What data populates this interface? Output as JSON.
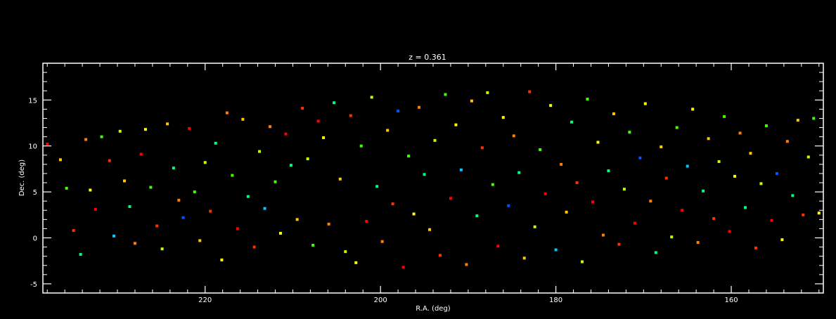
{
  "chart_data": {
    "type": "scatter",
    "title": "z = 0.361",
    "xlabel": "R.A. (deg)",
    "ylabel": "Dec. (deg)",
    "xlim": [
      238.5,
      149.5
    ],
    "ylim": [
      -6.0,
      19.0
    ],
    "x_ticks": [
      220,
      200,
      180,
      160
    ],
    "x_tick_labels": [
      "220",
      "200",
      "180",
      "160"
    ],
    "y_ticks": [
      -5,
      0,
      5,
      10,
      15
    ],
    "y_tick_labels": [
      "-5",
      "0",
      "5",
      "10",
      "15"
    ],
    "grid": false,
    "legend": "none",
    "background_color": "#000000",
    "axis_color": "#ffffff",
    "point_colors": [
      "#0055ff",
      "#00c8ff",
      "#00ff80",
      "#40ff00",
      "#c0ff00",
      "#ffff00",
      "#ffc800",
      "#ff8000",
      "#ff3000",
      "#ff0000"
    ],
    "points": [
      {
        "x": 238.0,
        "y": 10.2,
        "c": 9
      },
      {
        "x": 236.5,
        "y": 8.5,
        "c": 6
      },
      {
        "x": 235.8,
        "y": 5.4,
        "c": 3
      },
      {
        "x": 235.0,
        "y": 0.8,
        "c": 8
      },
      {
        "x": 234.2,
        "y": -1.8,
        "c": 2
      },
      {
        "x": 233.6,
        "y": 10.7,
        "c": 7
      },
      {
        "x": 233.1,
        "y": 5.2,
        "c": 5
      },
      {
        "x": 232.5,
        "y": 3.1,
        "c": 9
      },
      {
        "x": 231.8,
        "y": 11.0,
        "c": 3
      },
      {
        "x": 230.9,
        "y": 8.4,
        "c": 8
      },
      {
        "x": 230.4,
        "y": 0.2,
        "c": 1
      },
      {
        "x": 229.7,
        "y": 11.6,
        "c": 4
      },
      {
        "x": 229.2,
        "y": 6.2,
        "c": 6
      },
      {
        "x": 228.6,
        "y": 3.4,
        "c": 2
      },
      {
        "x": 228.0,
        "y": -0.6,
        "c": 7
      },
      {
        "x": 227.3,
        "y": 9.1,
        "c": 9
      },
      {
        "x": 226.8,
        "y": 11.8,
        "c": 5
      },
      {
        "x": 226.2,
        "y": 5.5,
        "c": 3
      },
      {
        "x": 225.5,
        "y": 1.3,
        "c": 8
      },
      {
        "x": 224.9,
        "y": -1.2,
        "c": 4
      },
      {
        "x": 224.3,
        "y": 12.4,
        "c": 6
      },
      {
        "x": 223.6,
        "y": 7.6,
        "c": 2
      },
      {
        "x": 223.0,
        "y": 4.1,
        "c": 7
      },
      {
        "x": 222.5,
        "y": 2.2,
        "c": 0
      },
      {
        "x": 221.8,
        "y": 11.9,
        "c": 9
      },
      {
        "x": 221.2,
        "y": 5.0,
        "c": 3
      },
      {
        "x": 220.6,
        "y": -0.3,
        "c": 6
      },
      {
        "x": 220.0,
        "y": 8.2,
        "c": 4
      },
      {
        "x": 219.4,
        "y": 2.9,
        "c": 8
      },
      {
        "x": 218.8,
        "y": 10.3,
        "c": 2
      },
      {
        "x": 218.1,
        "y": -2.4,
        "c": 5
      },
      {
        "x": 217.5,
        "y": 13.6,
        "c": 7
      },
      {
        "x": 216.9,
        "y": 6.8,
        "c": 3
      },
      {
        "x": 216.3,
        "y": 1.0,
        "c": 9
      },
      {
        "x": 215.7,
        "y": 12.9,
        "c": 6
      },
      {
        "x": 215.1,
        "y": 4.5,
        "c": 2
      },
      {
        "x": 214.4,
        "y": -1.0,
        "c": 8
      },
      {
        "x": 213.8,
        "y": 9.4,
        "c": 4
      },
      {
        "x": 213.2,
        "y": 3.2,
        "c": 1
      },
      {
        "x": 212.6,
        "y": 12.1,
        "c": 7
      },
      {
        "x": 212.0,
        "y": 6.1,
        "c": 3
      },
      {
        "x": 211.4,
        "y": 0.5,
        "c": 5
      },
      {
        "x": 210.8,
        "y": 11.3,
        "c": 9
      },
      {
        "x": 210.2,
        "y": 7.9,
        "c": 2
      },
      {
        "x": 209.5,
        "y": 2.0,
        "c": 6
      },
      {
        "x": 208.9,
        "y": 14.1,
        "c": 8
      },
      {
        "x": 208.3,
        "y": 8.6,
        "c": 4
      },
      {
        "x": 207.7,
        "y": -0.8,
        "c": 3
      },
      {
        "x": 207.1,
        "y": 12.7,
        "c": 9
      },
      {
        "x": 206.5,
        "y": 10.9,
        "c": 5
      },
      {
        "x": 205.9,
        "y": 1.5,
        "c": 7
      },
      {
        "x": 205.3,
        "y": 14.7,
        "c": 2
      },
      {
        "x": 204.6,
        "y": 6.4,
        "c": 6
      },
      {
        "x": 204.0,
        "y": -1.5,
        "c": 4
      },
      {
        "x": 203.4,
        "y": 13.3,
        "c": 8
      },
      {
        "x": 202.8,
        "y": -2.7,
        "c": 5
      },
      {
        "x": 202.2,
        "y": 10.0,
        "c": 3
      },
      {
        "x": 201.6,
        "y": 1.8,
        "c": 9
      },
      {
        "x": 201.0,
        "y": 15.3,
        "c": 4
      },
      {
        "x": 200.4,
        "y": 5.6,
        "c": 2
      },
      {
        "x": 199.8,
        "y": -0.4,
        "c": 7
      },
      {
        "x": 199.2,
        "y": 11.7,
        "c": 6
      },
      {
        "x": 198.6,
        "y": 3.7,
        "c": 8
      },
      {
        "x": 198.0,
        "y": 13.8,
        "c": 0
      },
      {
        "x": 197.4,
        "y": -3.2,
        "c": 9
      },
      {
        "x": 196.8,
        "y": 8.9,
        "c": 3
      },
      {
        "x": 196.2,
        "y": 2.6,
        "c": 5
      },
      {
        "x": 195.6,
        "y": 14.2,
        "c": 7
      },
      {
        "x": 195.0,
        "y": 6.9,
        "c": 2
      },
      {
        "x": 194.4,
        "y": 0.9,
        "c": 6
      },
      {
        "x": 193.8,
        "y": 10.6,
        "c": 4
      },
      {
        "x": 193.2,
        "y": -1.9,
        "c": 8
      },
      {
        "x": 192.6,
        "y": 15.6,
        "c": 3
      },
      {
        "x": 192.0,
        "y": 4.3,
        "c": 9
      },
      {
        "x": 191.4,
        "y": 12.3,
        "c": 5
      },
      {
        "x": 190.8,
        "y": 7.4,
        "c": 1
      },
      {
        "x": 190.2,
        "y": -2.9,
        "c": 7
      },
      {
        "x": 189.6,
        "y": 14.9,
        "c": 6
      },
      {
        "x": 189.0,
        "y": 2.4,
        "c": 2
      },
      {
        "x": 188.4,
        "y": 9.8,
        "c": 8
      },
      {
        "x": 187.8,
        "y": 15.8,
        "c": 4
      },
      {
        "x": 187.2,
        "y": 5.8,
        "c": 3
      },
      {
        "x": 186.6,
        "y": -0.9,
        "c": 9
      },
      {
        "x": 186.0,
        "y": 13.1,
        "c": 5
      },
      {
        "x": 185.4,
        "y": 3.5,
        "c": 0
      },
      {
        "x": 184.8,
        "y": 11.1,
        "c": 7
      },
      {
        "x": 184.2,
        "y": 7.1,
        "c": 2
      },
      {
        "x": 183.6,
        "y": -2.2,
        "c": 6
      },
      {
        "x": 183.0,
        "y": 15.9,
        "c": 8
      },
      {
        "x": 182.4,
        "y": 1.2,
        "c": 4
      },
      {
        "x": 181.8,
        "y": 9.6,
        "c": 3
      },
      {
        "x": 181.2,
        "y": 4.8,
        "c": 9
      },
      {
        "x": 180.6,
        "y": 14.4,
        "c": 5
      },
      {
        "x": 180.0,
        "y": -1.3,
        "c": 1
      },
      {
        "x": 179.4,
        "y": 8.0,
        "c": 7
      },
      {
        "x": 178.8,
        "y": 2.8,
        "c": 6
      },
      {
        "x": 178.2,
        "y": 12.6,
        "c": 2
      },
      {
        "x": 177.6,
        "y": 6.0,
        "c": 8
      },
      {
        "x": 177.0,
        "y": -2.6,
        "c": 4
      },
      {
        "x": 176.4,
        "y": 15.1,
        "c": 3
      },
      {
        "x": 175.8,
        "y": 3.9,
        "c": 9
      },
      {
        "x": 175.2,
        "y": 10.4,
        "c": 5
      },
      {
        "x": 174.6,
        "y": 0.3,
        "c": 7
      },
      {
        "x": 174.0,
        "y": 7.3,
        "c": 2
      },
      {
        "x": 173.4,
        "y": 13.5,
        "c": 6
      },
      {
        "x": 172.8,
        "y": -0.7,
        "c": 8
      },
      {
        "x": 172.2,
        "y": 5.3,
        "c": 4
      },
      {
        "x": 171.6,
        "y": 11.5,
        "c": 3
      },
      {
        "x": 171.0,
        "y": 1.6,
        "c": 9
      },
      {
        "x": 170.4,
        "y": 8.7,
        "c": 0
      },
      {
        "x": 169.8,
        "y": 14.6,
        "c": 5
      },
      {
        "x": 169.2,
        "y": 4.0,
        "c": 7
      },
      {
        "x": 168.6,
        "y": -1.6,
        "c": 2
      },
      {
        "x": 168.0,
        "y": 9.9,
        "c": 6
      },
      {
        "x": 167.4,
        "y": 6.5,
        "c": 8
      },
      {
        "x": 166.8,
        "y": 0.1,
        "c": 4
      },
      {
        "x": 166.2,
        "y": 12.0,
        "c": 3
      },
      {
        "x": 165.6,
        "y": 3.0,
        "c": 9
      },
      {
        "x": 165.0,
        "y": 7.8,
        "c": 1
      },
      {
        "x": 164.4,
        "y": 14.0,
        "c": 5
      },
      {
        "x": 163.8,
        "y": -0.5,
        "c": 7
      },
      {
        "x": 163.2,
        "y": 5.1,
        "c": 2
      },
      {
        "x": 162.6,
        "y": 10.8,
        "c": 6
      },
      {
        "x": 162.0,
        "y": 2.1,
        "c": 8
      },
      {
        "x": 161.4,
        "y": 8.3,
        "c": 4
      },
      {
        "x": 160.8,
        "y": 13.2,
        "c": 3
      },
      {
        "x": 160.2,
        "y": 0.7,
        "c": 9
      },
      {
        "x": 159.6,
        "y": 6.7,
        "c": 5
      },
      {
        "x": 159.0,
        "y": 11.4,
        "c": 7
      },
      {
        "x": 158.4,
        "y": 3.3,
        "c": 2
      },
      {
        "x": 157.8,
        "y": 9.2,
        "c": 6
      },
      {
        "x": 157.2,
        "y": -1.1,
        "c": 8
      },
      {
        "x": 156.6,
        "y": 5.9,
        "c": 4
      },
      {
        "x": 156.0,
        "y": 12.2,
        "c": 3
      },
      {
        "x": 155.4,
        "y": 1.9,
        "c": 9
      },
      {
        "x": 154.8,
        "y": 7.0,
        "c": 0
      },
      {
        "x": 154.2,
        "y": -0.2,
        "c": 5
      },
      {
        "x": 153.6,
        "y": 10.5,
        "c": 7
      },
      {
        "x": 153.0,
        "y": 4.6,
        "c": 2
      },
      {
        "x": 152.4,
        "y": 12.8,
        "c": 6
      },
      {
        "x": 151.8,
        "y": 2.5,
        "c": 8
      },
      {
        "x": 151.2,
        "y": 8.8,
        "c": 4
      },
      {
        "x": 150.6,
        "y": 13.0,
        "c": 3
      },
      {
        "x": 150.0,
        "y": 2.7,
        "c": 5
      }
    ]
  }
}
